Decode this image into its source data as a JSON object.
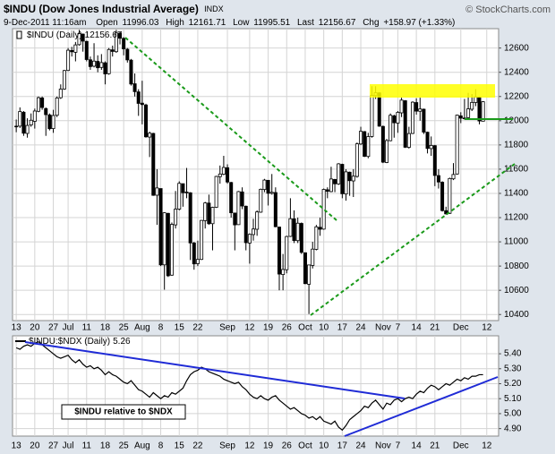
{
  "header": {
    "symbol": "$INDU (Dow Jones Industrial Average)",
    "exchange": "INDX",
    "watermark": "© StockCharts.com",
    "date": "9-Dec-2011 11:16am",
    "open_label": "Open",
    "high_label": "High",
    "low_label": "Low",
    "last_label": "Last",
    "chg_label": "Chg",
    "chg": "+158.97 (+1.33%)"
  },
  "chart_data": [
    {
      "type": "candlestick",
      "legend": "$INDU (Daily)",
      "color": "#000000",
      "grid": true,
      "x": [
        "Jun 13",
        "Jun 14",
        "Jun 15",
        "Jun 16",
        "Jun 17",
        "Jun 20",
        "Jun 21",
        "Jun 22",
        "Jun 23",
        "Jun 24",
        "Jun 27",
        "Jun 28",
        "Jun 29",
        "Jun 30",
        "Jul 1",
        "Jul 5",
        "Jul 6",
        "Jul 7",
        "Jul 8",
        "Jul 11",
        "Jul 12",
        "Jul 13",
        "Jul 14",
        "Jul 15",
        "Jul 18",
        "Jul 19",
        "Jul 20",
        "Jul 21",
        "Jul 22",
        "Jul 25",
        "Jul 26",
        "Jul 27",
        "Jul 28",
        "Jul 29",
        "Aug 1",
        "Aug 2",
        "Aug 3",
        "Aug 4",
        "Aug 5",
        "Aug 8",
        "Aug 9",
        "Aug 10",
        "Aug 11",
        "Aug 12",
        "Aug 15",
        "Aug 16",
        "Aug 17",
        "Aug 18",
        "Aug 19",
        "Aug 22",
        "Aug 23",
        "Aug 24",
        "Aug 25",
        "Aug 26",
        "Aug 29",
        "Aug 30",
        "Aug 31",
        "Sep 1",
        "Sep 2",
        "Sep 6",
        "Sep 7",
        "Sep 8",
        "Sep 9",
        "Sep 12",
        "Sep 13",
        "Sep 14",
        "Sep 15",
        "Sep 16",
        "Sep 19",
        "Sep 20",
        "Sep 21",
        "Sep 22",
        "Sep 23",
        "Sep 26",
        "Sep 27",
        "Sep 28",
        "Sep 29",
        "Sep 30",
        "Oct 3",
        "Oct 4",
        "Oct 5",
        "Oct 6",
        "Oct 7",
        "Oct 10",
        "Oct 11",
        "Oct 12",
        "Oct 13",
        "Oct 14",
        "Oct 17",
        "Oct 18",
        "Oct 19",
        "Oct 20",
        "Oct 21",
        "Oct 24",
        "Oct 25",
        "Oct 26",
        "Oct 27",
        "Oct 28",
        "Oct 31",
        "Nov 1",
        "Nov 2",
        "Nov 3",
        "Nov 4",
        "Nov 7",
        "Nov 8",
        "Nov 9",
        "Nov 10",
        "Nov 11",
        "Nov 14",
        "Nov 15",
        "Nov 16",
        "Nov 17",
        "Nov 18",
        "Nov 21",
        "Nov 22",
        "Nov 23",
        "Nov 25",
        "Nov 28",
        "Nov 29",
        "Nov 30",
        "Dec 1",
        "Dec 2",
        "Dec 5",
        "Dec 6",
        "Dec 7",
        "Dec 8",
        "Dec 9"
      ],
      "open": [
        11955,
        11955,
        12070,
        11895,
        11965,
        11995,
        12078,
        12188,
        12100,
        12048,
        11935,
        12045,
        12190,
        12262,
        12415,
        12580,
        12565,
        12628,
        12715,
        12655,
        12503,
        12450,
        12490,
        12440,
        12478,
        12388,
        12585,
        12570,
        12722,
        12680,
        12590,
        12500,
        12305,
        12238,
        12145,
        12130,
        11865,
        11895,
        11385,
        11440,
        10810,
        11235,
        10725,
        11140,
        11270,
        11480,
        11405,
        11405,
        10990,
        10820,
        10855,
        11175,
        11320,
        11150,
        11285,
        11538,
        11558,
        11612,
        11490,
        11238,
        11142,
        11412,
        11294,
        10990,
        11060,
        11104,
        11245,
        11432,
        11508,
        11400,
        11407,
        11122,
        10730,
        10770,
        11045,
        11190,
        11010,
        11152,
        10910,
        10650,
        10805,
        10938,
        11120,
        11105,
        11430,
        11415,
        11515,
        11478,
        11640,
        11395,
        11575,
        11503,
        11540,
        11808,
        11910,
        11705,
        11870,
        12207,
        12230,
        11953,
        11655,
        11835,
        12040,
        11980,
        12065,
        12165,
        11780,
        11895,
        12150,
        12078,
        12095,
        11905,
        11770,
        11794,
        11547,
        11492,
        11257,
        11235,
        11520,
        11560,
        12040,
        12022,
        12025,
        12095,
        12150,
        12195,
        11996.03
      ],
      "high": [
        12010,
        12110,
        12080,
        12020,
        12060,
        12100,
        12200,
        12200,
        12110,
        12060,
        12090,
        12200,
        12300,
        12420,
        12600,
        12610,
        12650,
        12750,
        12720,
        12660,
        12530,
        12640,
        12540,
        12550,
        12490,
        12600,
        12620,
        12750,
        12730,
        12690,
        12600,
        12510,
        12390,
        12260,
        12330,
        12140,
        11910,
        11900,
        11600,
        11440,
        11245,
        11240,
        11160,
        11420,
        11500,
        11480,
        11610,
        11410,
        11000,
        11010,
        11180,
        11330,
        11390,
        11290,
        11545,
        11630,
        11710,
        11640,
        11495,
        11240,
        11420,
        11450,
        11300,
        11070,
        11190,
        11260,
        11440,
        11520,
        11510,
        11560,
        11450,
        11125,
        10900,
        11050,
        11360,
        11260,
        11200,
        11160,
        10910,
        10810,
        11000,
        11140,
        11200,
        11440,
        11450,
        11620,
        11520,
        11650,
        11645,
        11600,
        11580,
        11600,
        11820,
        11950,
        11915,
        11900,
        12285,
        12285,
        12235,
        11960,
        11850,
        12060,
        12050,
        12080,
        12190,
        12170,
        11950,
        12160,
        12185,
        12190,
        12100,
        11910,
        11870,
        11800,
        11600,
        11500,
        11290,
        11530,
        11650,
        12050,
        12070,
        12180,
        12230,
        12220,
        12260,
        12200,
        12161.71
      ],
      "low": [
        11905,
        11940,
        11875,
        11860,
        11950,
        11935,
        12070,
        12090,
        11875,
        11920,
        11900,
        12030,
        12180,
        12255,
        12410,
        12530,
        12490,
        12620,
        12570,
        12490,
        12420,
        12440,
        12400,
        12420,
        12300,
        12380,
        12530,
        12560,
        12630,
        12540,
        12480,
        12290,
        12200,
        12040,
        11970,
        11860,
        11700,
        11380,
        11140,
        10800,
        10605,
        10710,
        10720,
        11110,
        11260,
        11290,
        11360,
        10850,
        10770,
        10800,
        10850,
        11110,
        11140,
        10930,
        11280,
        11480,
        11550,
        11480,
        11200,
        10930,
        11140,
        11270,
        10930,
        10820,
        11010,
        11050,
        11240,
        11410,
        11300,
        11390,
        11120,
        10600,
        10600,
        10740,
        11040,
        10990,
        10990,
        10900,
        10650,
        10404,
        10780,
        10930,
        11050,
        11100,
        11360,
        11410,
        11410,
        11470,
        11360,
        11340,
        11380,
        11370,
        11530,
        11800,
        11700,
        11690,
        11860,
        12180,
        11950,
        11650,
        11650,
        11830,
        11860,
        11900,
        12030,
        11775,
        11770,
        11890,
        12050,
        12000,
        11890,
        11730,
        11710,
        11460,
        11440,
        11250,
        11225,
        11230,
        11510,
        11555,
        11980,
        12010,
        12020,
        12080,
        12120,
        11970,
        11995.51
      ],
      "close": [
        11952,
        12076,
        11897,
        11961,
        12004,
        12080,
        12190,
        12109,
        12050,
        11934,
        12043,
        12188,
        12261,
        12414,
        12582,
        12569,
        12626,
        12719,
        12657,
        12505,
        12447,
        12492,
        12437,
        12480,
        12386,
        12588,
        12572,
        12724,
        12681,
        12593,
        12502,
        12303,
        12240,
        12143,
        12133,
        11867,
        11897,
        11384,
        11445,
        10810,
        11240,
        10720,
        11144,
        11270,
        11483,
        11406,
        11411,
        10991,
        10818,
        10855,
        11177,
        11321,
        11150,
        11285,
        11540,
        11560,
        11614,
        11494,
        11240,
        11140,
        11415,
        11296,
        10993,
        11062,
        11106,
        11247,
        11434,
        11510,
        11401,
        11409,
        11125,
        10734,
        10772,
        11044,
        11191,
        11011,
        11154,
        10913,
        10655,
        10809,
        10940,
        11124,
        11104,
        11433,
        11417,
        11519,
        11479,
        11644,
        11397,
        11578,
        11505,
        11542,
        11809,
        11913,
        11706,
        11869,
        12209,
        12231,
        11955,
        11658,
        11836,
        12045,
        11983,
        12069,
        12170,
        11781,
        11894,
        12153,
        12079,
        12097,
        11906,
        11771,
        11796,
        11548,
        11494,
        11258,
        11231,
        11523,
        11556,
        12046,
        12021,
        12019,
        12098,
        12151,
        12197,
        11998,
        12156.67
      ],
      "xlim": [
        -1,
        130.2
      ],
      "ylim": [
        10350,
        12760
      ],
      "yticks": [
        10400,
        10600,
        10800,
        11000,
        11200,
        11400,
        11600,
        11800,
        12000,
        12200,
        12400,
        12600
      ],
      "xticks": [
        {
          "value": 0,
          "label": "13"
        },
        {
          "value": 5,
          "label": "20"
        },
        {
          "value": 10,
          "label": "27"
        },
        {
          "value": 14,
          "label": "Jul"
        },
        {
          "value": 19,
          "label": "11"
        },
        {
          "value": 24,
          "label": "18"
        },
        {
          "value": 29,
          "label": "25"
        },
        {
          "value": 34,
          "label": "Aug"
        },
        {
          "value": 39,
          "label": "8"
        },
        {
          "value": 44,
          "label": "15"
        },
        {
          "value": 49,
          "label": "22"
        },
        {
          "value": 57,
          "label": "Sep"
        },
        {
          "value": 63,
          "label": "12"
        },
        {
          "value": 68,
          "label": "19"
        },
        {
          "value": 73,
          "label": "26"
        },
        {
          "value": 78,
          "label": "Oct"
        },
        {
          "value": 83,
          "label": "10"
        },
        {
          "value": 88,
          "label": "17"
        },
        {
          "value": 93,
          "label": "24"
        },
        {
          "value": 99,
          "label": "Nov"
        },
        {
          "value": 103,
          "label": "7"
        },
        {
          "value": 108,
          "label": "14"
        },
        {
          "value": 113,
          "label": "21"
        },
        {
          "value": 120,
          "label": "Dec"
        },
        {
          "value": 127,
          "label": "12"
        }
      ]
    },
    {
      "type": "line",
      "legend": "$INDU:$NDX (Daily)",
      "annotation": "$INDU relative to $NDX",
      "color": "#000000",
      "grid": true,
      "x": [
        "Jun 13",
        "Jun 14",
        "Jun 15",
        "Jun 16",
        "Jun 17",
        "Jun 20",
        "Jun 21",
        "Jun 22",
        "Jun 23",
        "Jun 24",
        "Jun 27",
        "Jun 28",
        "Jun 29",
        "Jun 30",
        "Jul 1",
        "Jul 5",
        "Jul 6",
        "Jul 7",
        "Jul 8",
        "Jul 11",
        "Jul 12",
        "Jul 13",
        "Jul 14",
        "Jul 15",
        "Jul 18",
        "Jul 19",
        "Jul 20",
        "Jul 21",
        "Jul 22",
        "Jul 25",
        "Jul 26",
        "Jul 27",
        "Jul 28",
        "Jul 29",
        "Aug 1",
        "Aug 2",
        "Aug 3",
        "Aug 4",
        "Aug 5",
        "Aug 8",
        "Aug 9",
        "Aug 10",
        "Aug 11",
        "Aug 12",
        "Aug 15",
        "Aug 16",
        "Aug 17",
        "Aug 18",
        "Aug 19",
        "Aug 22",
        "Aug 23",
        "Aug 24",
        "Aug 25",
        "Aug 26",
        "Aug 29",
        "Aug 30",
        "Aug 31",
        "Sep 1",
        "Sep 2",
        "Sep 6",
        "Sep 7",
        "Sep 8",
        "Sep 9",
        "Sep 12",
        "Sep 13",
        "Sep 14",
        "Sep 15",
        "Sep 16",
        "Sep 19",
        "Sep 20",
        "Sep 21",
        "Sep 22",
        "Sep 23",
        "Sep 26",
        "Sep 27",
        "Sep 28",
        "Sep 29",
        "Sep 30",
        "Oct 3",
        "Oct 4",
        "Oct 5",
        "Oct 6",
        "Oct 7",
        "Oct 10",
        "Oct 11",
        "Oct 12",
        "Oct 13",
        "Oct 14",
        "Oct 17",
        "Oct 18",
        "Oct 19",
        "Oct 20",
        "Oct 21",
        "Oct 24",
        "Oct 25",
        "Oct 26",
        "Oct 27",
        "Oct 28",
        "Oct 31",
        "Nov 1",
        "Nov 2",
        "Nov 3",
        "Nov 4",
        "Nov 7",
        "Nov 8",
        "Nov 9",
        "Nov 10",
        "Nov 11",
        "Nov 14",
        "Nov 15",
        "Nov 16",
        "Nov 17",
        "Nov 18",
        "Nov 21",
        "Nov 22",
        "Nov 23",
        "Nov 25",
        "Nov 28",
        "Nov 29",
        "Nov 30",
        "Dec 1",
        "Dec 2",
        "Dec 5",
        "Dec 6",
        "Dec 7",
        "Dec 8",
        "Dec 9"
      ],
      "values": [
        5.44,
        5.43,
        5.45,
        5.46,
        5.45,
        5.47,
        5.48,
        5.46,
        5.44,
        5.42,
        5.4,
        5.38,
        5.37,
        5.38,
        5.39,
        5.36,
        5.34,
        5.36,
        5.33,
        5.31,
        5.32,
        5.3,
        5.31,
        5.29,
        5.26,
        5.28,
        5.26,
        5.25,
        5.23,
        5.21,
        5.2,
        5.22,
        5.19,
        5.16,
        5.15,
        5.13,
        5.11,
        5.14,
        5.12,
        5.1,
        5.12,
        5.11,
        5.14,
        5.13,
        5.15,
        5.17,
        5.22,
        5.26,
        5.28,
        5.29,
        5.31,
        5.3,
        5.28,
        5.27,
        5.26,
        5.25,
        5.23,
        5.22,
        5.21,
        5.2,
        5.21,
        5.18,
        5.16,
        5.13,
        5.11,
        5.1,
        5.12,
        5.1,
        5.09,
        5.11,
        5.12,
        5.09,
        5.07,
        5.05,
        5.03,
        5.04,
        5.02,
        5.0,
        4.99,
        4.97,
        4.98,
        4.96,
        4.98,
        4.95,
        4.94,
        4.93,
        4.95,
        4.91,
        4.89,
        4.92,
        4.96,
        4.98,
        5.0,
        5.02,
        5.05,
        5.04,
        5.07,
        5.09,
        5.06,
        5.03,
        5.07,
        5.06,
        5.09,
        5.1,
        5.08,
        5.1,
        5.11,
        5.1,
        5.13,
        5.15,
        5.14,
        5.17,
        5.19,
        5.18,
        5.16,
        5.18,
        5.2,
        5.19,
        5.21,
        5.23,
        5.22,
        5.24,
        5.23,
        5.25,
        5.25,
        5.26,
        5.26
      ],
      "xlim": [
        -1,
        130.2
      ],
      "ylim": [
        4.85,
        5.52
      ],
      "yticks": [
        {
          "value": 4.9,
          "label": "4.90"
        },
        {
          "value": 5.0,
          "label": "5.00"
        },
        {
          "value": 5.1,
          "label": "5.10"
        },
        {
          "value": 5.2,
          "label": "5.20"
        },
        {
          "value": 5.3,
          "label": "5.30"
        },
        {
          "value": 5.4,
          "label": "5.40"
        }
      ],
      "xticks": [
        {
          "value": 0,
          "label": "13"
        },
        {
          "value": 5,
          "label": "20"
        },
        {
          "value": 10,
          "label": "27"
        },
        {
          "value": 14,
          "label": "Jul"
        },
        {
          "value": 19,
          "label": "11"
        },
        {
          "value": 24,
          "label": "18"
        },
        {
          "value": 29,
          "label": "25"
        },
        {
          "value": 34,
          "label": "Aug"
        },
        {
          "value": 39,
          "label": "8"
        },
        {
          "value": 44,
          "label": "15"
        },
        {
          "value": 49,
          "label": "22"
        },
        {
          "value": 57,
          "label": "Sep"
        },
        {
          "value": 63,
          "label": "12"
        },
        {
          "value": 68,
          "label": "19"
        },
        {
          "value": 73,
          "label": "26"
        },
        {
          "value": 78,
          "label": "Oct"
        },
        {
          "value": 83,
          "label": "10"
        },
        {
          "value": 88,
          "label": "17"
        },
        {
          "value": 93,
          "label": "24"
        },
        {
          "value": 99,
          "label": "Nov"
        },
        {
          "value": 103,
          "label": "7"
        },
        {
          "value": 108,
          "label": "14"
        },
        {
          "value": 113,
          "label": "21"
        },
        {
          "value": 120,
          "label": "Dec"
        },
        {
          "value": 127,
          "label": "12"
        }
      ]
    }
  ]
}
